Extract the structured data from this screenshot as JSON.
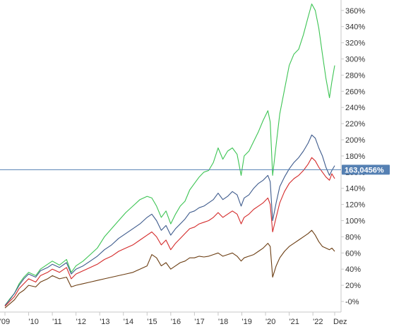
{
  "chart_data": {
    "type": "line",
    "title": "",
    "xlabel": "",
    "ylabel": "",
    "ylim": [
      -10,
      370
    ],
    "xlim": [
      2009.0,
      2022.92
    ],
    "y_ticks": [
      0,
      20,
      40,
      60,
      80,
      100,
      120,
      140,
      160,
      180,
      200,
      220,
      240,
      260,
      280,
      300,
      320,
      340,
      360
    ],
    "y_tick_labels": [
      "-0%",
      "20%",
      "40%",
      "60%",
      "80%",
      "100%",
      "120%",
      "140%",
      "160%",
      "180%",
      "200%",
      "220%",
      "240%",
      "260%",
      "280%",
      "300%",
      "320%",
      "340%",
      "360%"
    ],
    "x_ticks": [
      2009.0,
      2010.0,
      2011.0,
      2012.0,
      2013.0,
      2014.0,
      2015.0,
      2016.0,
      2017.0,
      2018.0,
      2019.0,
      2020.0,
      2021.0,
      2022.0,
      2022.92
    ],
    "x_tick_labels": [
      "'09",
      "'10",
      "'11",
      "'12",
      "'13",
      "'14",
      "'15",
      "'16",
      "'17",
      "'18",
      "'19",
      "'20",
      "'21",
      "'22",
      "Dez"
    ],
    "grid": false,
    "legend": "none",
    "crosshair": {
      "value": 163.0456,
      "label": "163,0456%"
    },
    "colors": {
      "green": "#3cc453",
      "blue": "#3d5a8c",
      "red": "#d42a2a",
      "brown": "#6b3d12",
      "crosshair": "#5580b3",
      "axis": "#c8c8c8"
    },
    "series": [
      {
        "color_key": "green",
        "x": [
          2009.0,
          2009.2,
          2009.4,
          2009.6,
          2009.8,
          2010.0,
          2010.3,
          2010.5,
          2010.8,
          2011.0,
          2011.3,
          2011.6,
          2011.8,
          2012.0,
          2012.3,
          2012.6,
          2012.9,
          2013.2,
          2013.5,
          2013.8,
          2014.1,
          2014.4,
          2014.7,
          2015.0,
          2015.2,
          2015.4,
          2015.6,
          2015.8,
          2016.0,
          2016.2,
          2016.4,
          2016.6,
          2016.8,
          2017.0,
          2017.2,
          2017.4,
          2017.6,
          2017.8,
          2018.0,
          2018.2,
          2018.4,
          2018.6,
          2018.8,
          2018.97,
          2019.1,
          2019.3,
          2019.5,
          2019.7,
          2019.9,
          2020.1,
          2020.2,
          2020.3,
          2020.45,
          2020.6,
          2020.8,
          2021.0,
          2021.2,
          2021.4,
          2021.6,
          2021.8,
          2021.95,
          2022.1,
          2022.25,
          2022.4,
          2022.55,
          2022.7,
          2022.8,
          2022.92
        ],
        "values": [
          -5,
          3,
          10,
          22,
          30,
          36,
          32,
          40,
          46,
          50,
          45,
          52,
          36,
          44,
          50,
          58,
          66,
          80,
          90,
          100,
          110,
          118,
          126,
          130,
          128,
          118,
          104,
          112,
          96,
          108,
          118,
          124,
          138,
          146,
          154,
          160,
          162,
          172,
          190,
          176,
          186,
          190,
          182,
          156,
          180,
          186,
          198,
          210,
          224,
          236,
          222,
          156,
          194,
          232,
          262,
          292,
          306,
          312,
          330,
          352,
          368,
          360,
          338,
          306,
          276,
          252,
          272,
          292
        ]
      },
      {
        "color_key": "blue",
        "x": [
          2009.0,
          2009.2,
          2009.4,
          2009.6,
          2009.8,
          2010.0,
          2010.3,
          2010.5,
          2010.8,
          2011.0,
          2011.3,
          2011.6,
          2011.8,
          2012.0,
          2012.3,
          2012.6,
          2012.9,
          2013.2,
          2013.5,
          2013.8,
          2014.1,
          2014.4,
          2014.7,
          2015.0,
          2015.2,
          2015.4,
          2015.6,
          2015.8,
          2016.0,
          2016.2,
          2016.4,
          2016.6,
          2016.8,
          2017.0,
          2017.2,
          2017.4,
          2017.6,
          2017.8,
          2018.0,
          2018.2,
          2018.4,
          2018.6,
          2018.8,
          2018.97,
          2019.1,
          2019.3,
          2019.5,
          2019.7,
          2019.9,
          2020.1,
          2020.2,
          2020.3,
          2020.45,
          2020.6,
          2020.8,
          2021.0,
          2021.2,
          2021.4,
          2021.6,
          2021.8,
          2021.95,
          2022.1,
          2022.25,
          2022.4,
          2022.55,
          2022.7,
          2022.8,
          2022.92
        ],
        "values": [
          -5,
          2,
          10,
          20,
          28,
          34,
          30,
          38,
          42,
          46,
          42,
          48,
          34,
          40,
          44,
          50,
          56,
          64,
          70,
          78,
          84,
          90,
          96,
          104,
          108,
          100,
          88,
          94,
          82,
          90,
          96,
          102,
          110,
          112,
          116,
          118,
          122,
          126,
          134,
          126,
          130,
          136,
          132,
          118,
          128,
          132,
          140,
          146,
          150,
          156,
          148,
          100,
          122,
          142,
          154,
          164,
          172,
          178,
          186,
          196,
          206,
          202,
          190,
          180,
          166,
          156,
          162,
          168
        ]
      },
      {
        "color_key": "red",
        "x": [
          2009.0,
          2009.2,
          2009.4,
          2009.6,
          2009.8,
          2010.0,
          2010.3,
          2010.5,
          2010.8,
          2011.0,
          2011.3,
          2011.6,
          2011.8,
          2012.0,
          2012.3,
          2012.6,
          2012.9,
          2013.2,
          2013.5,
          2013.8,
          2014.1,
          2014.4,
          2014.7,
          2015.0,
          2015.2,
          2015.4,
          2015.6,
          2015.8,
          2016.0,
          2016.2,
          2016.4,
          2016.6,
          2016.8,
          2017.0,
          2017.2,
          2017.4,
          2017.6,
          2017.8,
          2018.0,
          2018.2,
          2018.4,
          2018.6,
          2018.8,
          2018.97,
          2019.1,
          2019.3,
          2019.5,
          2019.7,
          2019.9,
          2020.1,
          2020.2,
          2020.3,
          2020.45,
          2020.6,
          2020.8,
          2021.0,
          2021.2,
          2021.4,
          2021.6,
          2021.8,
          2021.95,
          2022.1,
          2022.25,
          2022.4,
          2022.55,
          2022.7,
          2022.8,
          2022.92
        ],
        "values": [
          -6,
          0,
          6,
          16,
          22,
          28,
          24,
          32,
          36,
          40,
          36,
          42,
          28,
          34,
          38,
          42,
          46,
          52,
          56,
          62,
          66,
          70,
          76,
          82,
          86,
          80,
          70,
          76,
          64,
          72,
          78,
          84,
          90,
          92,
          96,
          98,
          100,
          104,
          110,
          104,
          108,
          112,
          108,
          96,
          104,
          108,
          114,
          118,
          122,
          128,
          120,
          86,
          104,
          122,
          136,
          146,
          152,
          156,
          162,
          170,
          178,
          174,
          166,
          160,
          154,
          150,
          158,
          152
        ]
      },
      {
        "color_key": "brown",
        "x": [
          2009.0,
          2009.2,
          2009.4,
          2009.6,
          2009.8,
          2010.0,
          2010.3,
          2010.5,
          2010.8,
          2011.0,
          2011.3,
          2011.6,
          2011.8,
          2012.0,
          2012.3,
          2012.6,
          2012.9,
          2013.2,
          2013.5,
          2013.8,
          2014.1,
          2014.4,
          2014.7,
          2015.0,
          2015.2,
          2015.4,
          2015.6,
          2015.8,
          2016.0,
          2016.2,
          2016.4,
          2016.6,
          2016.8,
          2017.0,
          2017.2,
          2017.4,
          2017.6,
          2017.8,
          2018.0,
          2018.2,
          2018.4,
          2018.6,
          2018.8,
          2018.97,
          2019.1,
          2019.3,
          2019.5,
          2019.7,
          2019.9,
          2020.1,
          2020.2,
          2020.3,
          2020.45,
          2020.6,
          2020.8,
          2021.0,
          2021.2,
          2021.4,
          2021.6,
          2021.8,
          2021.95,
          2022.1,
          2022.25,
          2022.4,
          2022.55,
          2022.7,
          2022.8,
          2022.92
        ],
        "values": [
          -8,
          -3,
          2,
          10,
          14,
          20,
          18,
          24,
          28,
          32,
          28,
          30,
          18,
          20,
          22,
          24,
          26,
          28,
          30,
          32,
          34,
          36,
          40,
          44,
          58,
          54,
          44,
          48,
          40,
          44,
          48,
          50,
          54,
          54,
          56,
          55,
          56,
          58,
          60,
          56,
          58,
          60,
          56,
          50,
          54,
          56,
          58,
          62,
          66,
          72,
          68,
          30,
          44,
          54,
          62,
          68,
          72,
          76,
          80,
          84,
          88,
          82,
          74,
          68,
          66,
          64,
          66,
          62
        ]
      }
    ]
  }
}
